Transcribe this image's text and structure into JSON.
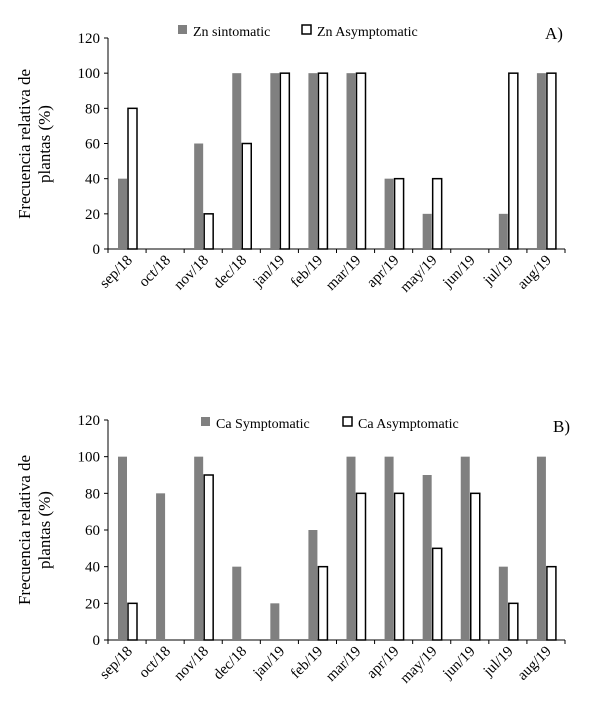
{
  "chart_data": [
    {
      "type": "bar",
      "panel_label": "A)",
      "ylabel_line1": "Frecuencia relativa de",
      "ylabel_line2": "plantas (%)",
      "ylim": [
        0,
        120
      ],
      "yticks": [
        0,
        20,
        40,
        60,
        80,
        100,
        120
      ],
      "categories": [
        "sep/18",
        "oct/18",
        "nov/18",
        "dec/18",
        "jan/19",
        "feb/19",
        "mar/19",
        "apr/19",
        "may/19",
        "jun/19",
        "jul/19",
        "aug/19"
      ],
      "series": [
        {
          "name": "Zn sintomatic",
          "color": "#808080",
          "values": [
            40,
            0,
            60,
            100,
            100,
            100,
            100,
            40,
            20,
            0,
            20,
            100
          ]
        },
        {
          "name": "Zn Asymptomatic",
          "color": "#ffffff",
          "values": [
            80,
            0,
            20,
            60,
            100,
            100,
            100,
            40,
            40,
            0,
            100,
            100
          ]
        }
      ],
      "legend": "top"
    },
    {
      "type": "bar",
      "panel_label": "B)",
      "ylabel_line1": "Frecuencia relativa  de",
      "ylabel_line2": "plantas (%)",
      "ylim": [
        0,
        120
      ],
      "yticks": [
        0,
        20,
        40,
        60,
        80,
        100,
        120
      ],
      "categories": [
        "sep/18",
        "oct/18",
        "nov/18",
        "dec/18",
        "jan/19",
        "feb/19",
        "mar/19",
        "apr/19",
        "may/19",
        "jun/19",
        "jul/19",
        "aug/19"
      ],
      "series": [
        {
          "name": "Ca Symptomatic",
          "color": "#808080",
          "values": [
            100,
            80,
            100,
            40,
            20,
            60,
            100,
            100,
            90,
            100,
            40,
            100
          ]
        },
        {
          "name": "Ca Asymptomatic",
          "color": "#ffffff",
          "values": [
            20,
            0,
            90,
            0,
            0,
            40,
            80,
            80,
            50,
            80,
            20,
            40
          ]
        }
      ],
      "legend": "top"
    }
  ]
}
